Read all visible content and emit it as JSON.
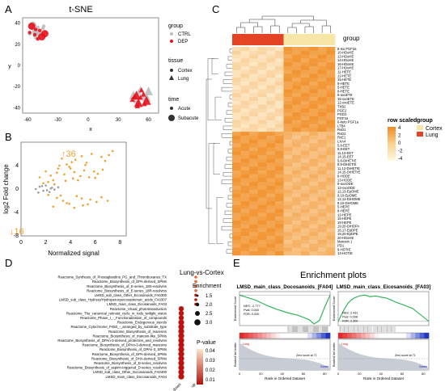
{
  "panels": {
    "A": "A",
    "B": "B",
    "C": "C",
    "D": "D",
    "E": "E"
  },
  "colors": {
    "ctrl": "#bdbdbd",
    "dep": "#e8101c",
    "orange_up": "#f0a030",
    "grey_pt": "#9e9e9e",
    "heat_hi": "#f4a340",
    "heat_mid": "#f8d290",
    "heat_lo": "#fff6d8",
    "lung": "#e54424",
    "cortex": "#f6e7a6",
    "gsea_line": "#22b14c",
    "dot": "#c0120c"
  },
  "panelA": {
    "title": "t-SNE",
    "xlabel": "x",
    "ylabel": "y",
    "xticks": [
      "-60",
      "-30",
      "0",
      "30",
      "60"
    ],
    "yticks": [
      "40",
      "20",
      "0",
      "-20",
      "-40"
    ],
    "legend": {
      "group_title": "group",
      "group_items": [
        "CTRL",
        "DEP"
      ],
      "tissue_title": "tissue",
      "tissue_items": [
        "Cortex",
        "Lung"
      ],
      "time_title": "time",
      "time_items": [
        "Acute",
        "Subacute"
      ]
    }
  },
  "chart_data": [
    {
      "type": "scatter",
      "title": "t-SNE",
      "xlabel": "x",
      "ylabel": "y",
      "xlim": [
        -65,
        70
      ],
      "ylim": [
        -45,
        45
      ],
      "series": [
        {
          "name": "CTRL",
          "x": [
            -55,
            -50,
            -45,
            -52,
            -47,
            -58,
            -51,
            -44,
            -49,
            45,
            50,
            55,
            58,
            52,
            47,
            60,
            54,
            49
          ],
          "y": [
            38,
            36,
            35,
            32,
            31,
            30,
            28,
            37,
            26,
            -28,
            -25,
            -26,
            -30,
            -22,
            -33,
            -24,
            -29,
            -35
          ]
        },
        {
          "name": "DEP",
          "x": [
            -56,
            -48,
            -52,
            -46,
            -53,
            -58,
            -43,
            -50,
            44,
            48,
            52,
            56,
            50,
            46,
            53,
            58,
            55,
            49
          ],
          "y": [
            37,
            33,
            34,
            27,
            29,
            31,
            30,
            25,
            -32,
            -28,
            -30,
            -36,
            -35,
            -29,
            -23,
            -33,
            -27,
            -38
          ]
        }
      ]
    },
    {
      "type": "scatter",
      "xlabel": "Normalized signal",
      "ylabel": "log2 Fold change",
      "xlim": [
        0,
        8.5
      ],
      "ylim": [
        -8,
        8
      ],
      "annotations": [
        "↑36",
        "↓16"
      ],
      "series": [
        {
          "name": "up",
          "x": [
            1.5,
            2.0,
            2.6,
            3.1,
            3.5,
            4.0,
            4.4,
            4.8,
            5.3,
            5.9,
            6.5,
            7.1,
            2.2,
            2.9,
            3.7,
            4.2,
            5.1,
            5.7,
            6.2,
            6.8,
            3.3,
            4.6,
            5.5,
            1.8,
            2.4,
            3.9,
            4.9,
            6.0,
            2.7,
            3.0,
            4.3,
            5.2,
            6.6,
            7.4,
            3.6,
            4.1
          ],
          "y": [
            2.0,
            3.0,
            1.5,
            4.0,
            2.5,
            3.5,
            5.0,
            2.2,
            4.5,
            3.0,
            5.5,
            5.8,
            1.2,
            2.8,
            4.2,
            1.8,
            3.2,
            6.0,
            2.6,
            4.8,
            5.2,
            1.5,
            2.0,
            1.0,
            2.3,
            3.8,
            5.6,
            1.9,
            0.8,
            3.5,
            2.9,
            4.1,
            3.3,
            6.5,
            1.4,
            4.6
          ]
        },
        {
          "name": "down",
          "x": [
            2.2,
            2.9,
            3.4,
            3.9,
            4.5,
            5.0,
            5.6,
            6.1,
            2.6,
            3.2,
            3.7,
            4.3,
            4.9,
            5.4,
            6.5,
            7.0
          ],
          "y": [
            -1.0,
            -1.5,
            -2.0,
            -2.5,
            -1.2,
            -2.8,
            -1.8,
            -2.2,
            -3.0,
            -1.1,
            -2.4,
            -3.2,
            -1.6,
            -2.6,
            -1.4,
            -2.0
          ]
        },
        {
          "name": "ns",
          "x": [
            1.2,
            1.5,
            1.8,
            2.0,
            2.3,
            2.5,
            2.7,
            3.0,
            1.4,
            1.7,
            2.1,
            2.4
          ],
          "y": [
            0.0,
            0.4,
            -0.3,
            0.6,
            -0.5,
            0.2,
            -0.1,
            0.3,
            -0.6,
            0.5,
            -0.2,
            0.1
          ]
        }
      ],
      "xticks": [
        "0",
        "2",
        "4",
        "6",
        "8"
      ],
      "yticks": [
        "4",
        "0",
        "-4",
        "-8"
      ]
    },
    {
      "type": "heatmap",
      "title": "",
      "rows": [
        "8-iso PGF2a",
        "10-HDoHE",
        "13-HDoHE",
        "14-HDoHE",
        "16-HDoHE",
        "17-HDoHE",
        "11-HETE",
        "12-HETE",
        "15-HETE",
        "9-HETE",
        "5-HETE",
        "8-HETE",
        "5-oxoETE",
        "15-oxoETE",
        "12-oxoETE",
        "TXB2",
        "PGE2",
        "PGD2",
        "PGF2a",
        "6-keto PGF1a",
        "LTB4",
        "RvD1",
        "RvD2",
        "RvE1",
        "LXA4",
        "5,6-EET",
        "8,9-EET",
        "11,12-EET",
        "14,15-EET",
        "5,6-DiHETrE",
        "8,9-DiHETrE",
        "11,12-DiHETrE",
        "14,15-DiHETrE",
        "9-HODE",
        "13-HODE",
        "9-oxoODE",
        "13-oxoODE",
        "12,13-EpOME",
        "9,10-EpOME",
        "12,13-DiHOME",
        "9,10-DiHOME",
        "5-HEPE",
        "8-HEPE",
        "12-HEPE",
        "15-HEPE",
        "18-HEPE",
        "19,20-DiHDPA",
        "16,17-EpDPE",
        "19,20-EpDPE",
        "20-HDoHE",
        "Maresin 1",
        "PD1",
        "9-HOTrE",
        "13-HOTrE"
      ],
      "columns_count": 12,
      "legend_title": "row scaled",
      "legend_ticks": [
        "4",
        "2",
        "0",
        "-2",
        "-4"
      ],
      "group_title": "group",
      "group_items": [
        "Cortex",
        "Lung"
      ],
      "col_groups": [
        "Lung",
        "Lung",
        "Lung",
        "Lung",
        "Lung",
        "Lung",
        "Cortex",
        "Cortex",
        "Cortex",
        "Cortex",
        "Cortex",
        "Cortex"
      ]
    },
    {
      "type": "scatter",
      "title": "Lung-vs-Cortex",
      "categories": [
        "Reactome_Synthesis_of_Prostaglandins_PG_and_Thromboxanes_TX",
        "Reactome_Biosynthesis_of_EPA-derived_SPMs",
        "Reactome_Biosynthesis_of_E-series_18S-resolvins",
        "Reactome_Biosynthesis_of_E-series_18R-resolvins",
        "LMSD_sub_class_Other_Eicosanoids_FA0300",
        "LMSD_sub_class_Hydroxy/Hydroperoxyeicosatrienoic_acids_FA0307",
        "LMSD_main_class_Eicosanoids_FA03",
        "Reactome_Visual_phototransduction",
        "Reactome_The_canonical_retinoid_cycle_in_rods_twilight_vision",
        "Reactome_Phase_I_-_Functionalization_of_compounds",
        "Reactome_Endogenous_sterols",
        "Reactome_Cytochrome_P450_-_arranged_by_substrate_type",
        "Reactome_Biosynthesis_of_maresins",
        "Reactome_Biosynthesis_of_maresin-like_SPMs",
        "Reactome_Biosynthesis_of_DPAn-3-derived_protectins_and_resolvins",
        "Reactome_Biosynthesis_of_DPAn-3-derived_maresins",
        "Reactome_Biosynthesis_of_DPAn-3_SPMs",
        "Reactome_Biosynthesis_of_DPA-derived_SPMs",
        "Reactome_Biosynthesis_of_DHA-derived_SPMs",
        "Reactome_Biosynthesis_of_D-series_resolvins",
        "Reactome_Biosynthesis_of_aspirin-triggered_D-series_resolvins",
        "LMSD_sub_class_Other_Docosanoids_FA0400",
        "LMSD_main_class_Docosanoids_FA04"
      ],
      "x_categories": [
        "down",
        "up"
      ],
      "legend_enrichment_title": "Enrichment",
      "legend_enrichment": [
        "1.5",
        "2.0",
        "2.5",
        "3.0"
      ],
      "legend_p_title": "P-value",
      "legend_p_ticks": [
        "0.04",
        "0.03",
        "0.02",
        "0.01"
      ]
    },
    {
      "type": "line",
      "title": "Enrichment plots",
      "plots": [
        {
          "name": "LMSD_main_class_Docosanoids_[FA04]",
          "ylabel": "Enrichment Score",
          "xlabel": "Rank in Ordered Dataset",
          "stats": [
            "NES: -2.777",
            "Pval: 0.000",
            "FDR: 0.000"
          ],
          "es_x": [
            0,
            5,
            10,
            15,
            20,
            25,
            30,
            35,
            40,
            45,
            50,
            55,
            60,
            65,
            70,
            75,
            80,
            85
          ],
          "es_y": [
            0,
            -0.05,
            -0.1,
            -0.15,
            -0.22,
            -0.3,
            -0.36,
            -0.42,
            -0.47,
            -0.52,
            -0.56,
            -0.6,
            -0.66,
            -0.72,
            -0.85,
            -0.75,
            -0.35,
            0
          ],
          "xticks": [
            "0",
            "20",
            "40",
            "60",
            "80"
          ],
          "zero_label": "Zero score at 71"
        },
        {
          "name": "LMSD_main_class_Eicosanoids_[FA03]",
          "ylabel": "Enrichment Score",
          "xlabel": "Rank in Ordered Dataset",
          "stats": [
            "NES: 2.431",
            "Pval: 0.008",
            "FDR: 2.300"
          ],
          "es_x": [
            0,
            3,
            6,
            9,
            12,
            15,
            20,
            25,
            30,
            35,
            40,
            45,
            50,
            55,
            60,
            65,
            70,
            75,
            80,
            85
          ],
          "es_y": [
            0,
            0.15,
            0.3,
            0.42,
            0.5,
            0.55,
            0.6,
            0.62,
            0.58,
            0.6,
            0.57,
            0.55,
            0.5,
            0.44,
            0.4,
            0.35,
            0.3,
            0.2,
            0.1,
            0
          ],
          "xticks": [
            "0",
            "20",
            "40",
            "60",
            "80"
          ],
          "zero_label": "Zero score at 71"
        }
      ],
      "rank_ylabel": "Ranked list metric",
      "rank_labels": [
        "Lung",
        "Cortex"
      ]
    }
  ]
}
